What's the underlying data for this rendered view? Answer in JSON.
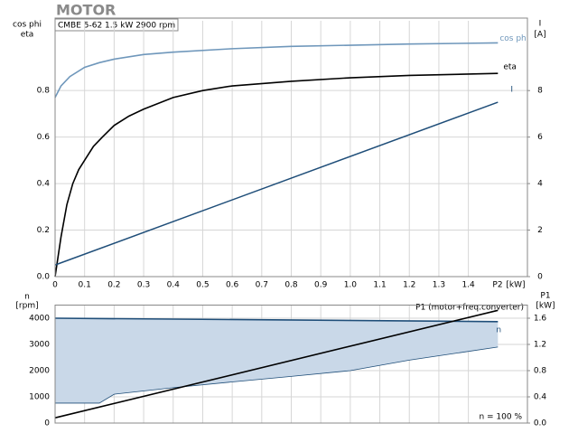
{
  "chart_data": [
    {
      "type": "line",
      "title": "MOTOR",
      "subtitle": "CMBE 5-62   1.5 kW   2900 rpm",
      "y_label": [
        "cos phi",
        "eta"
      ],
      "y2_label": [
        "I",
        "[A]"
      ],
      "x_label": [
        "P2",
        "[kW]"
      ],
      "xlim": [
        0,
        1.6
      ],
      "xticks": [
        0,
        0.1,
        0.2,
        0.3,
        0.4,
        0.5,
        0.6,
        0.7,
        0.8,
        0.9,
        {
          "value": 1,
          "label": "1.0"
        },
        1.1,
        1.2,
        1.3,
        1.4
      ],
      "ylim": [
        0,
        1.1
      ],
      "yticks": [
        {
          "value": 0,
          "label": "0.0"
        },
        0.2,
        0.4,
        0.6,
        0.8
      ],
      "y2lim": [
        0,
        11
      ],
      "y2ticks": [
        0,
        2,
        4,
        6,
        8
      ],
      "grid": true,
      "series": [
        {
          "name": "cos phi",
          "color": "#6f97bb",
          "x": [
            0,
            0.02,
            0.05,
            0.1,
            0.15,
            0.2,
            0.3,
            0.4,
            0.6,
            0.8,
            1.0,
            1.2,
            1.5
          ],
          "values": [
            0.77,
            0.82,
            0.86,
            0.9,
            0.92,
            0.935,
            0.955,
            0.965,
            0.98,
            0.99,
            0.995,
            1.0,
            1.005
          ]
        },
        {
          "name": "eta",
          "color": "#000000",
          "x": [
            0,
            0.02,
            0.04,
            0.06,
            0.08,
            0.1,
            0.13,
            0.16,
            0.2,
            0.25,
            0.3,
            0.4,
            0.5,
            0.6,
            0.8,
            1.0,
            1.2,
            1.5
          ],
          "values": [
            0,
            0.17,
            0.31,
            0.4,
            0.46,
            0.5,
            0.56,
            0.6,
            0.65,
            0.69,
            0.72,
            0.77,
            0.8,
            0.82,
            0.84,
            0.855,
            0.865,
            0.874
          ]
        },
        {
          "name": "I",
          "color": "#1f4e79",
          "axis": "y2",
          "x": [
            0,
            1.5
          ],
          "values": [
            0.5,
            7.5
          ]
        }
      ]
    },
    {
      "type": "line",
      "y_label": [
        "n",
        "[rpm]"
      ],
      "y2_label": [
        "P1",
        "[kW]"
      ],
      "annotations": [
        "P1 (motor+freq.converter)",
        "n = 100 %"
      ],
      "xlim": [
        0,
        1.6
      ],
      "ylim": [
        0,
        4500
      ],
      "yticks": [
        0,
        1000,
        2000,
        3000,
        4000
      ],
      "y2lim": [
        0,
        1.8
      ],
      "y2ticks": [
        {
          "value": 0,
          "label": "0.0"
        },
        0.4,
        0.8,
        1.2,
        1.6
      ],
      "grid": true,
      "series": [
        {
          "type": "area",
          "color": "#c9d8e8",
          "x": [
            0,
            0.15,
            0.2,
            0.4,
            0.6,
            0.8,
            1.0,
            1.2,
            1.5
          ],
          "values": [
            760,
            760,
            1100,
            1350,
            1570,
            1780,
            2000,
            2400,
            2900
          ]
        },
        {
          "name": "n",
          "color": "#1f4e79",
          "x": [
            0,
            1.5
          ],
          "values": [
            4000,
            3870
          ]
        },
        {
          "name": "P1",
          "color": "#000000",
          "axis": "y2",
          "x": [
            0,
            1.5
          ],
          "values": [
            0.08,
            1.72
          ]
        }
      ]
    }
  ]
}
